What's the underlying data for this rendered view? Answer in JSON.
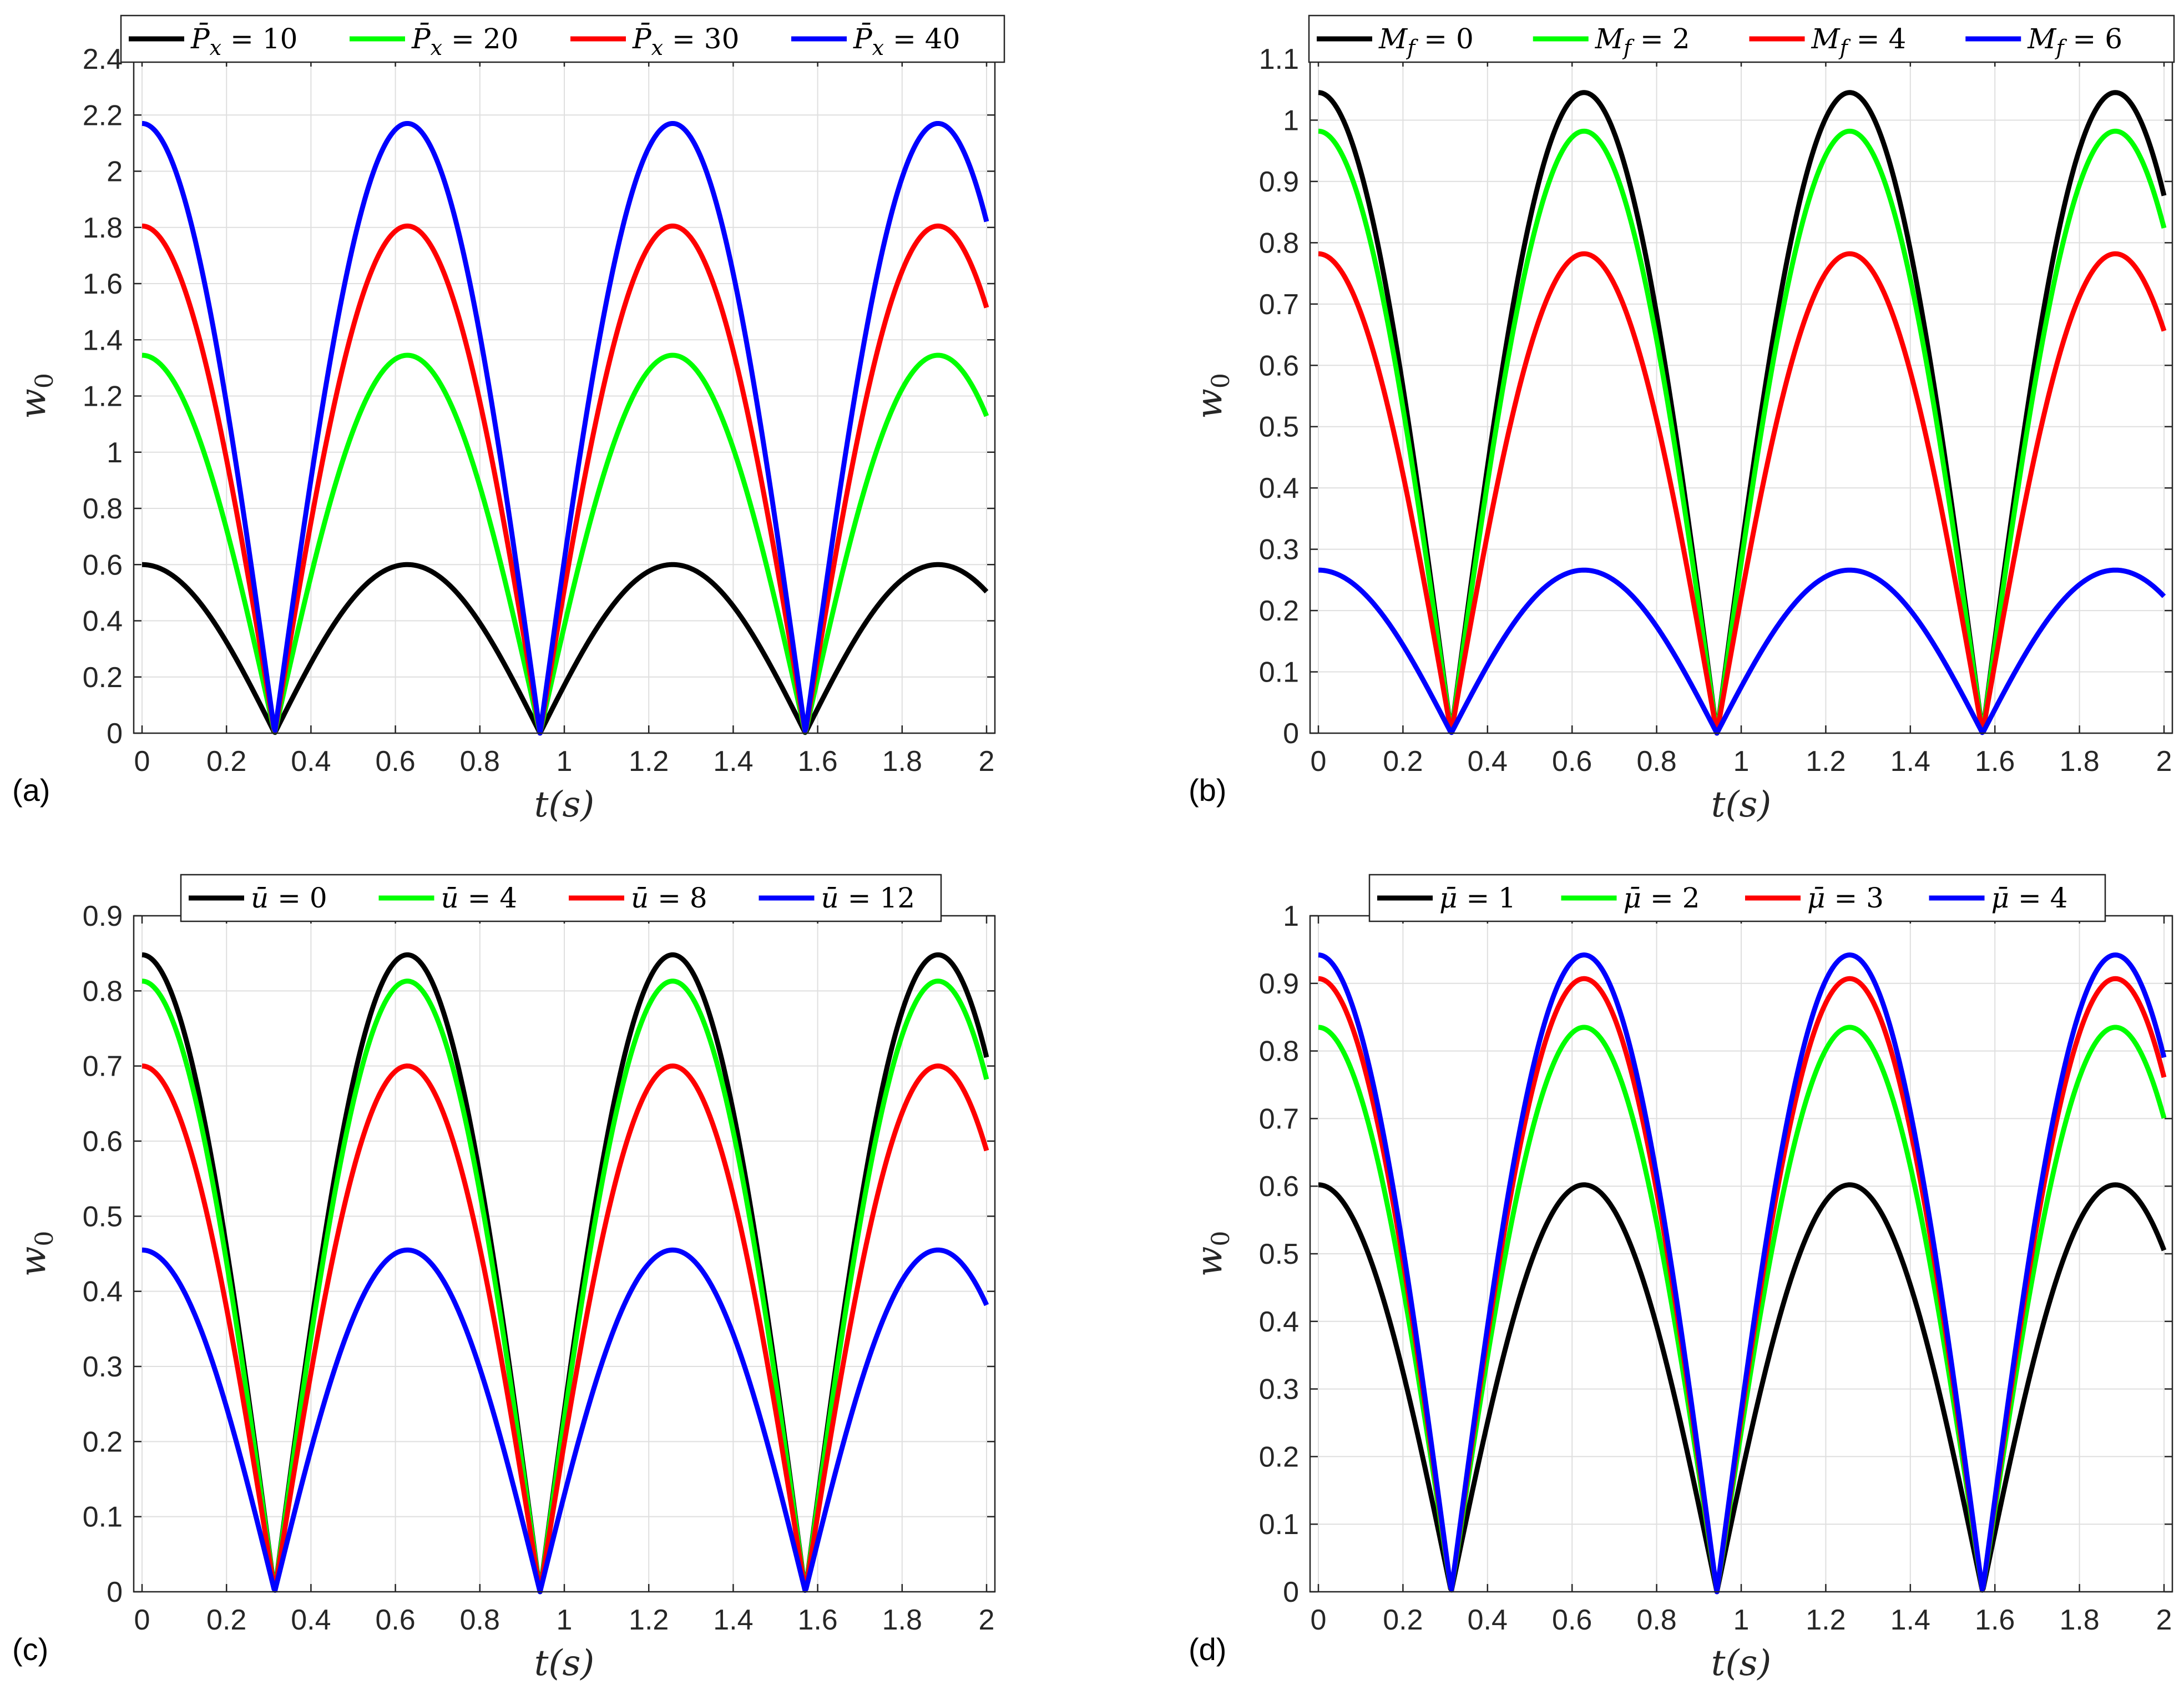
{
  "figure": {
    "panels_layout": "2x2"
  },
  "colors": {
    "black": "#000000",
    "green": "#00ff00",
    "red": "#ff0000",
    "blue": "#0000ff"
  },
  "chart_data": [
    {
      "type": "line",
      "panel_label": "(a)",
      "xlabel": "t(s)",
      "ylabel": "w0",
      "xlim": [
        0,
        2
      ],
      "ylim": [
        0,
        2.4
      ],
      "xticks": [
        0,
        0.2,
        0.4,
        0.6,
        0.8,
        1,
        1.2,
        1.4,
        1.6,
        1.8,
        2
      ],
      "xtick_labels": [
        "0",
        "0.2",
        "0.4",
        "0.6",
        "0.8",
        "1",
        "1.2",
        "1.4",
        "1.6",
        "1.8",
        "2"
      ],
      "yticks": [
        0,
        0.2,
        0.4,
        0.6,
        0.8,
        1,
        1.2,
        1.4,
        1.6,
        1.8,
        2,
        2.2,
        2.4
      ],
      "ytick_labels": [
        "0",
        "0.2",
        "0.4",
        "0.6",
        "0.8",
        "1",
        "1.2",
        "1.4",
        "1.6",
        "1.8",
        "2",
        "2.2",
        "2.4"
      ],
      "grid": true,
      "legend_position": "top-outside",
      "function": "amplitude * |cos(5 t)|",
      "series": [
        {
          "name": "P̄x = 10",
          "sym": "P̄",
          "sub": "x",
          "val": "10",
          "color": "black",
          "amplitude": 0.6
        },
        {
          "name": "P̄x = 20",
          "sym": "P̄",
          "sub": "x",
          "val": "20",
          "color": "green",
          "amplitude": 1.345
        },
        {
          "name": "P̄x = 30",
          "sym": "P̄",
          "sub": "x",
          "val": "30",
          "color": "red",
          "amplitude": 1.805
        },
        {
          "name": "P̄x = 40",
          "sym": "P̄",
          "sub": "x",
          "val": "40",
          "color": "blue",
          "amplitude": 2.17
        }
      ]
    },
    {
      "type": "line",
      "panel_label": "(b)",
      "xlabel": "t(s)",
      "ylabel": "w0",
      "xlim": [
        0,
        2
      ],
      "ylim": [
        0,
        1.1
      ],
      "xticks": [
        0,
        0.2,
        0.4,
        0.6,
        0.8,
        1,
        1.2,
        1.4,
        1.6,
        1.8,
        2
      ],
      "xtick_labels": [
        "0",
        "0.2",
        "0.4",
        "0.6",
        "0.8",
        "1",
        "1.2",
        "1.4",
        "1.6",
        "1.8",
        "2"
      ],
      "yticks": [
        0,
        0.1,
        0.2,
        0.3,
        0.4,
        0.5,
        0.6,
        0.7,
        0.8,
        0.9,
        1,
        1.1
      ],
      "ytick_labels": [
        "0",
        "0.1",
        "0.2",
        "0.3",
        "0.4",
        "0.5",
        "0.6",
        "0.7",
        "0.8",
        "0.9",
        "1",
        "1.1"
      ],
      "grid": true,
      "legend_position": "top-outside",
      "function": "amplitude * |cos(5 t)|",
      "series": [
        {
          "name": "Mf = 0",
          "sym": "M",
          "sub": "f",
          "val": "0",
          "color": "black",
          "amplitude": 1.045
        },
        {
          "name": "Mf = 2",
          "sym": "M",
          "sub": "f",
          "val": "2",
          "color": "green",
          "amplitude": 0.982
        },
        {
          "name": "Mf = 4",
          "sym": "M",
          "sub": "f",
          "val": "4",
          "color": "red",
          "amplitude": 0.782
        },
        {
          "name": "Mf = 6",
          "sym": "M",
          "sub": "f",
          "val": "6",
          "color": "blue",
          "amplitude": 0.266
        }
      ]
    },
    {
      "type": "line",
      "panel_label": "(c)",
      "xlabel": "t(s)",
      "ylabel": "w0",
      "xlim": [
        0,
        2
      ],
      "ylim": [
        0,
        0.9
      ],
      "xticks": [
        0,
        0.2,
        0.4,
        0.6,
        0.8,
        1,
        1.2,
        1.4,
        1.6,
        1.8,
        2
      ],
      "xtick_labels": [
        "0",
        "0.2",
        "0.4",
        "0.6",
        "0.8",
        "1",
        "1.2",
        "1.4",
        "1.6",
        "1.8",
        "2"
      ],
      "yticks": [
        0,
        0.1,
        0.2,
        0.3,
        0.4,
        0.5,
        0.6,
        0.7,
        0.8,
        0.9
      ],
      "ytick_labels": [
        "0",
        "0.1",
        "0.2",
        "0.3",
        "0.4",
        "0.5",
        "0.6",
        "0.7",
        "0.8",
        "0.9"
      ],
      "grid": true,
      "legend_position": "top-outside",
      "function": "amplitude * |cos(5 t)|",
      "series": [
        {
          "name": "ū = 0",
          "sym": "ū",
          "sub": "",
          "val": "0",
          "color": "black",
          "amplitude": 0.848
        },
        {
          "name": "ū = 4",
          "sym": "ū",
          "sub": "",
          "val": "4",
          "color": "green",
          "amplitude": 0.813
        },
        {
          "name": "ū = 8",
          "sym": "ū",
          "sub": "",
          "val": "8",
          "color": "red",
          "amplitude": 0.7
        },
        {
          "name": "ū = 12",
          "sym": "ū",
          "sub": "",
          "val": "12",
          "color": "blue",
          "amplitude": 0.455
        }
      ]
    },
    {
      "type": "line",
      "panel_label": "(d)",
      "xlabel": "t(s)",
      "ylabel": "w0",
      "xlim": [
        0,
        2
      ],
      "ylim": [
        0,
        1
      ],
      "xticks": [
        0,
        0.2,
        0.4,
        0.6,
        0.8,
        1,
        1.2,
        1.4,
        1.6,
        1.8,
        2
      ],
      "xtick_labels": [
        "0",
        "0.2",
        "0.4",
        "0.6",
        "0.8",
        "1",
        "1.2",
        "1.4",
        "1.6",
        "1.8",
        "2"
      ],
      "yticks": [
        0,
        0.1,
        0.2,
        0.3,
        0.4,
        0.5,
        0.6,
        0.7,
        0.8,
        0.9,
        1
      ],
      "ytick_labels": [
        "0",
        "0.1",
        "0.2",
        "0.3",
        "0.4",
        "0.5",
        "0.6",
        "0.7",
        "0.8",
        "0.9",
        "1"
      ],
      "grid": true,
      "legend_position": "top-outside",
      "function": "amplitude * |cos(5 t)|",
      "series": [
        {
          "name": "μ̄ = 1",
          "sym": "μ̄",
          "sub": "",
          "val": "1",
          "color": "black",
          "amplitude": 0.602
        },
        {
          "name": "μ̄ = 2",
          "sym": "μ̄",
          "sub": "",
          "val": "2",
          "color": "green",
          "amplitude": 0.835
        },
        {
          "name": "μ̄ = 3",
          "sym": "μ̄",
          "sub": "",
          "val": "3",
          "color": "red",
          "amplitude": 0.907
        },
        {
          "name": "μ̄ = 4",
          "sym": "μ̄",
          "sub": "",
          "val": "4",
          "color": "blue",
          "amplitude": 0.942
        }
      ]
    }
  ]
}
